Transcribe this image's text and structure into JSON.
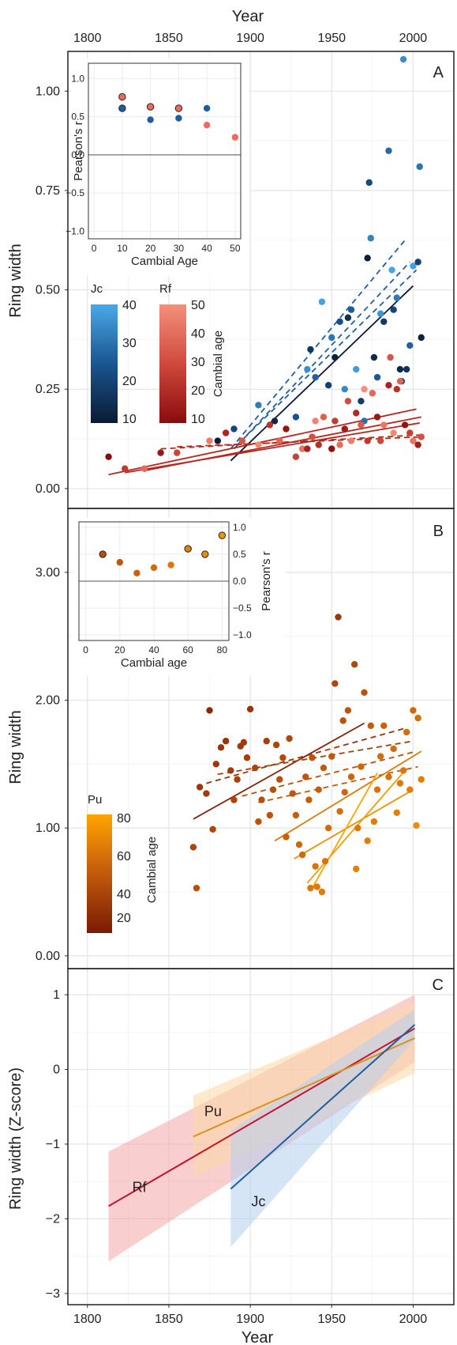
{
  "figure": {
    "top_axis_title": "Year",
    "bottom_axis_title": "Year",
    "x_ticks": [
      1800,
      1850,
      1900,
      1950,
      2000
    ],
    "xlim": [
      1788,
      2025
    ]
  },
  "chart_data": [
    {
      "panel": "A",
      "type": "scatter",
      "ylabel": "Ring width",
      "ylim": [
        -0.05,
        1.1
      ],
      "y_ticks": [
        0.0,
        0.25,
        0.5,
        0.75,
        1.0
      ],
      "y_tick_labels": [
        "0.00",
        "0.25",
        "0.50",
        "0.75",
        "1.00"
      ],
      "legend": {
        "jc_label": "Jc",
        "rf_label": "Rf",
        "title": "Cambial age",
        "jc_ticks": [
          "10",
          "20",
          "30",
          "40"
        ],
        "rf_ticks": [
          "10",
          "20",
          "30",
          "40",
          "50"
        ]
      },
      "series": [
        {
          "name": "Jc",
          "points": [
            [
              1880,
              0.12
            ],
            [
              1890,
              0.15
            ],
            [
              1905,
              0.21
            ],
            [
              1915,
              0.17
            ],
            [
              1928,
              0.18
            ],
            [
              1935,
              0.3
            ],
            [
              1937,
              0.35
            ],
            [
              1940,
              0.28
            ],
            [
              1944,
              0.47
            ],
            [
              1948,
              0.26
            ],
            [
              1950,
              0.38
            ],
            [
              1952,
              0.33
            ],
            [
              1955,
              0.42
            ],
            [
              1958,
              0.25
            ],
            [
              1960,
              0.43
            ],
            [
              1962,
              0.45
            ],
            [
              1965,
              0.3
            ],
            [
              1968,
              0.22
            ],
            [
              1970,
              0.17
            ],
            [
              1972,
              0.58
            ],
            [
              1973,
              0.77
            ],
            [
              1974,
              0.63
            ],
            [
              1976,
              0.33
            ],
            [
              1978,
              0.28
            ],
            [
              1980,
              0.44
            ],
            [
              1982,
              0.42
            ],
            [
              1985,
              0.85
            ],
            [
              1987,
              0.55
            ],
            [
              1988,
              0.45
            ],
            [
              1990,
              0.48
            ],
            [
              1992,
              0.3
            ],
            [
              1993,
              0.27
            ],
            [
              1994,
              1.08
            ],
            [
              1996,
              0.3
            ],
            [
              1998,
              0.36
            ],
            [
              2000,
              0.56
            ],
            [
              2003,
              0.57
            ],
            [
              2004,
              0.81
            ],
            [
              2005,
              0.38
            ]
          ]
        },
        {
          "name": "Rf",
          "points": [
            [
              1813,
              0.08
            ],
            [
              1823,
              0.05
            ],
            [
              1835,
              0.05
            ],
            [
              1845,
              0.09
            ],
            [
              1855,
              0.09
            ],
            [
              1875,
              0.12
            ],
            [
              1885,
              0.14
            ],
            [
              1895,
              0.12
            ],
            [
              1905,
              0.11
            ],
            [
              1912,
              0.16
            ],
            [
              1918,
              0.12
            ],
            [
              1922,
              0.15
            ],
            [
              1928,
              0.08
            ],
            [
              1932,
              0.1
            ],
            [
              1935,
              0.1
            ],
            [
              1938,
              0.13
            ],
            [
              1940,
              0.17
            ],
            [
              1942,
              0.11
            ],
            [
              1945,
              0.18
            ],
            [
              1950,
              0.1
            ],
            [
              1952,
              0.17
            ],
            [
              1955,
              0.11
            ],
            [
              1958,
              0.15
            ],
            [
              1960,
              0.22
            ],
            [
              1962,
              0.12
            ],
            [
              1965,
              0.19
            ],
            [
              1968,
              0.16
            ],
            [
              1970,
              0.25
            ],
            [
              1972,
              0.12
            ],
            [
              1975,
              0.24
            ],
            [
              1978,
              0.18
            ],
            [
              1980,
              0.12
            ],
            [
              1982,
              0.16
            ],
            [
              1985,
              0.26
            ],
            [
              1986,
              0.33
            ],
            [
              1988,
              0.14
            ],
            [
              1990,
              0.25
            ],
            [
              1992,
              0.27
            ],
            [
              1995,
              0.16
            ],
            [
              1998,
              0.14
            ],
            [
              2000,
              0.12
            ],
            [
              2003,
              0.11
            ],
            [
              2005,
              0.13
            ]
          ]
        }
      ],
      "fits": [
        {
          "group": "Jc",
          "x": [
            1888,
            2000
          ],
          "y": [
            0.07,
            0.51
          ],
          "style": "solid"
        },
        {
          "group": "Jc",
          "x": [
            1888,
            1996
          ],
          "y": [
            0.1,
            0.63
          ],
          "style": "dashed"
        },
        {
          "group": "Jc",
          "x": [
            1890,
            1998
          ],
          "y": [
            0.1,
            0.57
          ],
          "style": "dashed"
        },
        {
          "group": "Jc",
          "x": [
            1892,
            2002
          ],
          "y": [
            0.11,
            0.55
          ],
          "style": "dashed"
        },
        {
          "group": "Rf",
          "x": [
            1813,
            2002
          ],
          "y": [
            0.035,
            0.2
          ],
          "style": "solid"
        },
        {
          "group": "Rf",
          "x": [
            1823,
            2004
          ],
          "y": [
            0.04,
            0.165
          ],
          "style": "solid"
        },
        {
          "group": "Rf",
          "x": [
            1835,
            2005
          ],
          "y": [
            0.045,
            0.18
          ],
          "style": "solid"
        },
        {
          "group": "Rf",
          "x": [
            1845,
            2005
          ],
          "y": [
            0.1,
            0.135
          ],
          "style": "dashed"
        },
        {
          "group": "Rf",
          "x": [
            1855,
            2005
          ],
          "y": [
            0.105,
            0.13
          ],
          "style": "dashed"
        }
      ],
      "inset": {
        "xlabel": "Cambial Age",
        "ylabel": "Pearson's r",
        "x_ticks": [
          0,
          10,
          20,
          30,
          40,
          50
        ],
        "y_ticks": [
          -1.0,
          -0.5,
          0.0,
          0.5,
          1.0
        ],
        "y_tick_labels": [
          "−1.0",
          "−0.5",
          "0.0",
          "0.5",
          "1.0"
        ],
        "series": [
          {
            "name": "Jc",
            "x": [
              10,
              20,
              30,
              40
            ],
            "y": [
              0.61,
              0.46,
              0.48,
              0.61
            ]
          },
          {
            "name": "Rf",
            "x": [
              10,
              20,
              30,
              40,
              50
            ],
            "y": [
              0.76,
              0.63,
              0.61,
              0.39,
              0.23
            ]
          }
        ]
      }
    },
    {
      "panel": "B",
      "type": "scatter",
      "ylabel": "Ring width",
      "ylim": [
        -0.1,
        3.5
      ],
      "y_ticks": [
        0.0,
        1.0,
        2.0,
        3.0
      ],
      "y_tick_labels": [
        "0.00",
        "1.00",
        "2.00",
        "3.00"
      ],
      "legend": {
        "label": "Pu",
        "title": "Cambial age",
        "ticks": [
          "20",
          "40",
          "60",
          "80"
        ]
      },
      "series": [
        {
          "name": "Pu",
          "points": [
            [
              1865,
              0.85
            ],
            [
              1867,
              0.53
            ],
            [
              1869,
              1.32
            ],
            [
              1873,
              1.27
            ],
            [
              1875,
              1.92
            ],
            [
              1877,
              0.99
            ],
            [
              1879,
              1.5
            ],
            [
              1882,
              1.63
            ],
            [
              1885,
              1.68
            ],
            [
              1888,
              1.45
            ],
            [
              1890,
              1.22
            ],
            [
              1892,
              1.38
            ],
            [
              1894,
              1.64
            ],
            [
              1896,
              1.67
            ],
            [
              1898,
              1.55
            ],
            [
              1900,
              1.93
            ],
            [
              1903,
              1.47
            ],
            [
              1905,
              1.05
            ],
            [
              1907,
              1.22
            ],
            [
              1910,
              1.68
            ],
            [
              1912,
              1.1
            ],
            [
              1914,
              1.3
            ],
            [
              1916,
              1.65
            ],
            [
              1918,
              1.38
            ],
            [
              1920,
              1.55
            ],
            [
              1922,
              0.93
            ],
            [
              1924,
              1.7
            ],
            [
              1926,
              1.27
            ],
            [
              1928,
              1.1
            ],
            [
              1930,
              0.87
            ],
            [
              1932,
              0.79
            ],
            [
              1934,
              1.4
            ],
            [
              1936,
              1.22
            ],
            [
              1937,
              0.53
            ],
            [
              1938,
              1.55
            ],
            [
              1940,
              0.7
            ],
            [
              1941,
              0.54
            ],
            [
              1942,
              1.3
            ],
            [
              1944,
              0.5
            ],
            [
              1945,
              1.47
            ],
            [
              1946,
              0.74
            ],
            [
              1948,
              1.0
            ],
            [
              1950,
              1.56
            ],
            [
              1952,
              2.13
            ],
            [
              1954,
              2.65
            ],
            [
              1955,
              1.13
            ],
            [
              1957,
              1.84
            ],
            [
              1958,
              1.28
            ],
            [
              1960,
              1.92
            ],
            [
              1962,
              1.4
            ],
            [
              1964,
              2.28
            ],
            [
              1965,
              0.68
            ],
            [
              1966,
              1.0
            ],
            [
              1968,
              1.48
            ],
            [
              1970,
              2.06
            ],
            [
              1972,
              0.9
            ],
            [
              1974,
              1.8
            ],
            [
              1976,
              1.05
            ],
            [
              1978,
              1.3
            ],
            [
              1980,
              1.56
            ],
            [
              1982,
              1.8
            ],
            [
              1985,
              1.4
            ],
            [
              1988,
              1.62
            ],
            [
              1990,
              1.12
            ],
            [
              1992,
              1.35
            ],
            [
              1994,
              1.45
            ],
            [
              1996,
              1.75
            ],
            [
              1998,
              1.3
            ],
            [
              2000,
              1.92
            ],
            [
              2002,
              1.02
            ],
            [
              2003,
              1.86
            ],
            [
              2005,
              1.38
            ]
          ]
        }
      ],
      "fits": [
        {
          "group": "Pu",
          "x": [
            1865,
            1970
          ],
          "y": [
            1.07,
            1.82
          ],
          "style": "solid",
          "age": 15
        },
        {
          "group": "Pu",
          "x": [
            1873,
            1995
          ],
          "y": [
            1.35,
            1.78
          ],
          "style": "dashed",
          "age": 25
        },
        {
          "group": "Pu",
          "x": [
            1880,
            2000
          ],
          "y": [
            1.42,
            1.68
          ],
          "style": "dashed",
          "age": 30
        },
        {
          "group": "Pu",
          "x": [
            1895,
            2002
          ],
          "y": [
            1.25,
            1.6
          ],
          "style": "dashed",
          "age": 40
        },
        {
          "group": "Pu",
          "x": [
            1905,
            2003
          ],
          "y": [
            1.2,
            1.48
          ],
          "style": "dashed",
          "age": 45
        },
        {
          "group": "Pu",
          "x": [
            1915,
            2005
          ],
          "y": [
            0.9,
            1.6
          ],
          "style": "solid",
          "age": 60
        },
        {
          "group": "Pu",
          "x": [
            1927,
            2000
          ],
          "y": [
            0.76,
            1.3
          ],
          "style": "solid",
          "age": 70
        },
        {
          "group": "Pu",
          "x": [
            1935,
            1995
          ],
          "y": [
            0.57,
            1.45
          ],
          "style": "solid",
          "age": 75
        },
        {
          "group": "Pu",
          "x": [
            1938,
            1978
          ],
          "y": [
            0.53,
            1.43
          ],
          "style": "solid",
          "age": 80
        }
      ],
      "inset": {
        "xlabel": "Cambial age",
        "ylabel": "Pearson's r",
        "x_ticks": [
          0,
          20,
          40,
          60,
          80
        ],
        "y_ticks": [
          -1.0,
          -0.5,
          0.0,
          0.5,
          1.0
        ],
        "y_tick_labels": [
          "−1.0",
          "−0.5",
          "0.0",
          "0.5",
          "1.0"
        ],
        "series": [
          {
            "name": "Pu",
            "x": [
              10,
              20,
              30,
              40,
              50,
              60,
              70,
              80
            ],
            "y": [
              0.5,
              0.35,
              0.15,
              0.25,
              0.3,
              0.6,
              0.5,
              0.85
            ]
          }
        ]
      }
    },
    {
      "panel": "C",
      "type": "line",
      "ylabel": "Ring width (Z-score)",
      "ylim": [
        -3.15,
        1.35
      ],
      "y_ticks": [
        -3,
        -2,
        -1,
        0,
        1
      ],
      "y_tick_labels": [
        "−3",
        "−2",
        "−1",
        "0",
        "1"
      ],
      "series": [
        {
          "name": "Rf",
          "x": [
            1813,
            2001
          ],
          "y": [
            -1.83,
            0.55
          ],
          "band_upper": [
            -1.1,
            1.0
          ],
          "band_lower": [
            -2.57,
            0.1
          ],
          "color": "#c8102e",
          "band_color": "#f4a6a6"
        },
        {
          "name": "Pu",
          "x": [
            1865,
            2001
          ],
          "y": [
            -0.9,
            0.42
          ],
          "band_upper": [
            -0.35,
            0.9
          ],
          "band_lower": [
            -1.45,
            -0.05
          ],
          "color": "#d9921e",
          "band_color": "#fcd9a6"
        },
        {
          "name": "Jc",
          "x": [
            1888,
            2001
          ],
          "y": [
            -1.6,
            0.6
          ],
          "band_upper": [
            -0.82,
            0.8
          ],
          "band_lower": [
            -2.38,
            0.4
          ],
          "color": "#1f5e9e",
          "band_color": "#b5d0ef"
        }
      ]
    }
  ]
}
